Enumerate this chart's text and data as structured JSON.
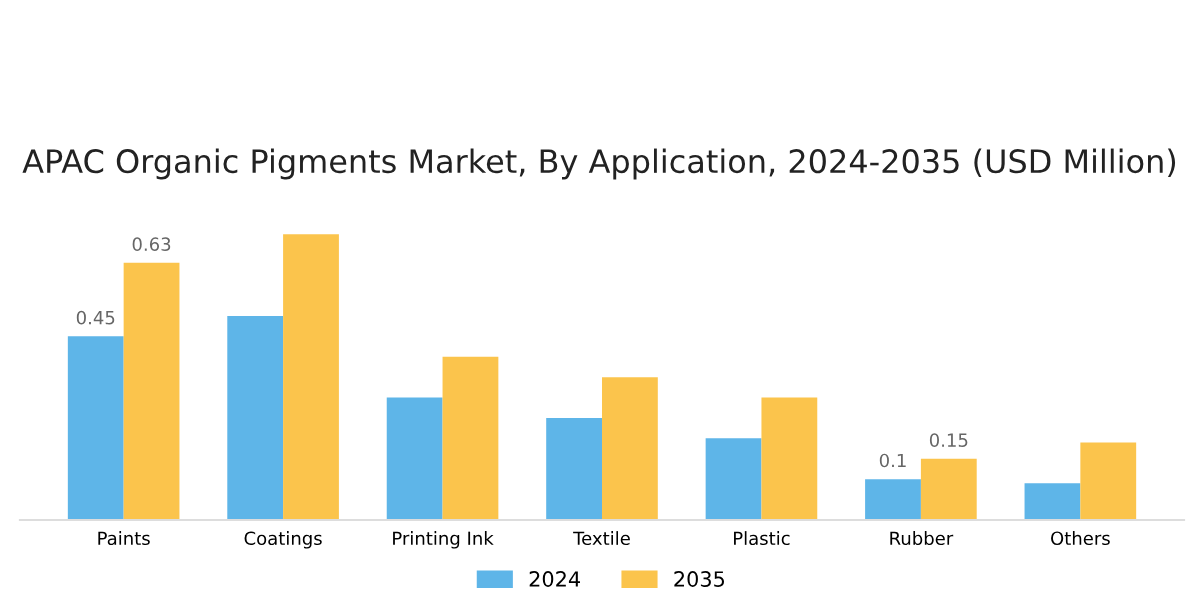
{
  "chart_data": {
    "type": "bar",
    "title": "APAC Organic Pigments Market, By Application, 2024-2035 (USD Million)",
    "categories": [
      "Paints",
      "Coatings",
      "Printing Ink",
      "Textile",
      "Plastic",
      "Rubber",
      "Others"
    ],
    "series": [
      {
        "name": "2024",
        "color": "#5eb5e8",
        "values": [
          0.45,
          0.5,
          0.3,
          0.25,
          0.2,
          0.1,
          0.09
        ],
        "value_labels": [
          "0.45",
          null,
          null,
          null,
          null,
          "0.1",
          null
        ]
      },
      {
        "name": "2035",
        "color": "#fbc44c",
        "values": [
          0.63,
          0.7,
          0.4,
          0.35,
          0.3,
          0.15,
          0.19
        ],
        "value_labels": [
          "0.63",
          null,
          null,
          null,
          null,
          "0.15",
          null
        ]
      }
    ],
    "legend": "bottom",
    "grid": false
  }
}
